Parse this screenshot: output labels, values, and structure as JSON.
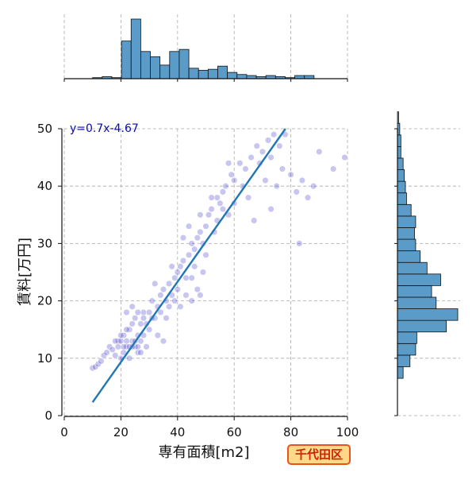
{
  "chart_data": {
    "type": "scatter",
    "xlabel": "専有面積[m2]",
    "ylabel": "賃料[万円]",
    "xlim": [
      0,
      100
    ],
    "ylim": [
      0,
      50
    ],
    "x_ticks": [
      0,
      20,
      40,
      60,
      80,
      100
    ],
    "y_ticks": [
      0,
      10,
      20,
      30,
      40,
      50
    ],
    "grid": true,
    "point_color": "#3b32c8",
    "line_color": "#1f77b4",
    "hist_color": "#5b9bc8",
    "regression": {
      "label": "y=0.7x-4.67",
      "slope": 0.7,
      "intercept": -4.67,
      "x_range": [
        10,
        78.1
      ]
    },
    "x_histogram": {
      "bin_start": 10,
      "bin_width": 3.4,
      "counts": [
        1,
        2,
        1,
        36,
        57,
        26,
        21,
        13,
        26,
        28,
        10,
        8,
        9,
        12,
        6,
        4,
        3,
        2,
        3,
        2,
        1,
        3,
        3,
        0
      ]
    },
    "y_histogram": {
      "bin_start": 6.5,
      "bin_width": 2.02,
      "counts": [
        5,
        11,
        16,
        17,
        43,
        53,
        34,
        30,
        38,
        26,
        20,
        16,
        15,
        16,
        12,
        8,
        7,
        6,
        5,
        3,
        3,
        2,
        1
      ]
    },
    "points": [
      [
        10,
        8.3
      ],
      [
        11,
        8.5
      ],
      [
        12,
        9
      ],
      [
        13,
        9.5
      ],
      [
        14,
        10.5
      ],
      [
        15,
        11
      ],
      [
        16,
        12
      ],
      [
        17,
        11.5
      ],
      [
        18,
        10.5
      ],
      [
        19,
        13
      ],
      [
        20,
        13
      ],
      [
        21,
        14
      ],
      [
        22,
        12
      ],
      [
        23,
        15
      ],
      [
        24,
        16
      ],
      [
        25,
        17
      ],
      [
        26,
        14
      ],
      [
        27,
        13
      ],
      [
        28,
        18
      ],
      [
        29,
        16
      ],
      [
        30,
        18
      ],
      [
        31,
        20
      ],
      [
        32,
        17
      ],
      [
        33,
        19
      ],
      [
        34,
        21
      ],
      [
        35,
        22
      ],
      [
        36,
        20
      ],
      [
        37,
        23
      ],
      [
        38,
        21
      ],
      [
        39,
        24
      ],
      [
        40,
        25
      ],
      [
        41,
        26
      ],
      [
        42,
        27
      ],
      [
        43,
        24
      ],
      [
        44,
        28
      ],
      [
        45,
        30
      ],
      [
        46,
        29
      ],
      [
        47,
        31
      ],
      [
        48,
        32
      ],
      [
        49,
        30
      ],
      [
        50,
        33
      ],
      [
        51,
        35
      ],
      [
        52,
        36
      ],
      [
        53,
        32
      ],
      [
        54,
        38
      ],
      [
        55,
        37
      ],
      [
        56,
        39
      ],
      [
        57,
        40
      ],
      [
        58,
        35
      ],
      [
        59,
        42
      ],
      [
        60,
        41
      ],
      [
        62,
        44
      ],
      [
        64,
        43
      ],
      [
        66,
        45
      ],
      [
        68,
        47
      ],
      [
        70,
        46
      ],
      [
        72,
        48
      ],
      [
        74,
        49
      ],
      [
        76,
        47
      ],
      [
        78,
        49
      ],
      [
        20,
        10
      ],
      [
        21,
        11
      ],
      [
        22,
        15
      ],
      [
        23,
        12
      ],
      [
        24,
        13
      ],
      [
        25,
        12
      ],
      [
        26,
        11
      ],
      [
        27,
        16
      ],
      [
        28,
        14
      ],
      [
        29,
        12
      ],
      [
        22,
        18
      ],
      [
        24,
        19
      ],
      [
        26,
        18
      ],
      [
        28,
        17
      ],
      [
        30,
        15
      ],
      [
        32,
        23
      ],
      [
        34,
        18
      ],
      [
        36,
        17
      ],
      [
        38,
        26
      ],
      [
        40,
        22
      ],
      [
        42,
        31
      ],
      [
        44,
        33
      ],
      [
        46,
        26
      ],
      [
        48,
        35
      ],
      [
        50,
        28
      ],
      [
        52,
        38
      ],
      [
        54,
        34
      ],
      [
        56,
        36
      ],
      [
        58,
        44
      ],
      [
        60,
        37
      ],
      [
        63,
        40
      ],
      [
        65,
        38
      ],
      [
        67,
        34
      ],
      [
        69,
        44
      ],
      [
        71,
        41
      ],
      [
        73,
        45
      ],
      [
        75,
        40
      ],
      [
        77,
        43
      ],
      [
        80,
        42
      ],
      [
        82,
        39
      ],
      [
        84,
        41
      ],
      [
        86,
        38
      ],
      [
        88,
        40
      ],
      [
        90,
        46
      ],
      [
        95,
        43
      ],
      [
        99,
        45
      ],
      [
        73,
        36
      ],
      [
        83,
        30
      ],
      [
        48,
        21
      ],
      [
        45,
        24
      ],
      [
        35,
        13
      ],
      [
        31,
        17
      ],
      [
        33,
        14
      ],
      [
        37,
        19
      ],
      [
        39,
        20
      ],
      [
        41,
        19
      ],
      [
        43,
        21
      ],
      [
        45,
        20
      ],
      [
        47,
        22
      ],
      [
        49,
        25
      ],
      [
        24,
        12
      ],
      [
        25,
        13
      ],
      [
        26,
        12
      ],
      [
        27,
        11
      ],
      [
        23,
        10
      ],
      [
        22,
        13
      ],
      [
        21,
        12
      ],
      [
        20,
        14
      ],
      [
        19,
        12
      ],
      [
        18,
        13
      ]
    ]
  }
}
